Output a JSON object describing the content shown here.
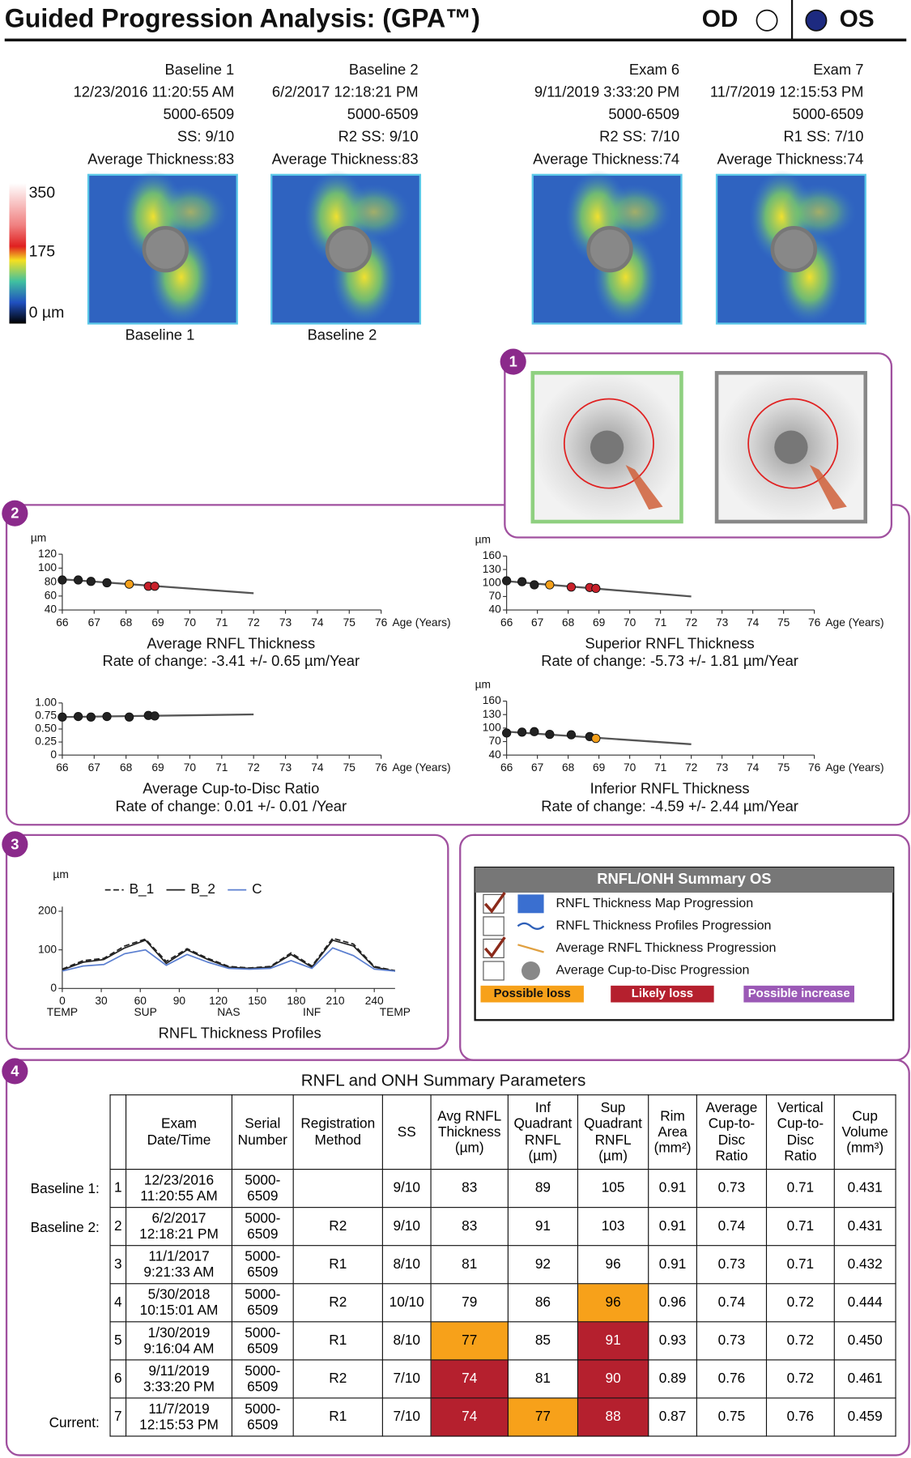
{
  "header": {
    "title": "Guided Progression Analysis: (GPA™)",
    "od": "OD",
    "os": "OS"
  },
  "exams": [
    {
      "lines": [
        "Baseline 1",
        "12/23/2016 11:20:55 AM",
        "5000-6509",
        "SS: 9/10",
        "Average Thickness:83"
      ]
    },
    {
      "lines": [
        "Baseline 2",
        "6/2/2017 12:18:21 PM",
        "5000-6509",
        "R2   SS: 9/10",
        "Average Thickness:83"
      ]
    },
    {
      "lines": [
        "Exam 6",
        "9/11/2019 3:33:20 PM",
        "5000-6509",
        "R2   SS: 7/10",
        "Average Thickness:74"
      ]
    },
    {
      "lines": [
        "Exam 7",
        "11/7/2019 12:15:53 PM",
        "5000-6509",
        "R1   SS: 7/10",
        "Average Thickness:74"
      ]
    }
  ],
  "captions": [
    "Baseline 1",
    "Baseline 2"
  ],
  "colorbar": {
    "labels": [
      "350",
      "175",
      "0 µm"
    ]
  },
  "badges": [
    "1",
    "2",
    "3",
    "4"
  ],
  "chart_data": [
    {
      "type": "scatter",
      "title": "Average RNFL Thickness",
      "subtitle": "Rate of change: -3.41 +/- 0.65 µm/Year",
      "y_label": "µm",
      "x_label": "Age (Years)",
      "xlim": [
        66,
        76
      ],
      "xticks": [
        66,
        67,
        68,
        69,
        70,
        71,
        72,
        73,
        74,
        75,
        76
      ],
      "ylim": [
        40,
        120
      ],
      "yticks": [
        40,
        60,
        80,
        100,
        120
      ],
      "x": [
        66.0,
        66.5,
        66.9,
        67.4,
        68.1,
        68.7,
        68.9
      ],
      "values": [
        83,
        83,
        81,
        79,
        77,
        74,
        74
      ],
      "colors": [
        "#222222",
        "#222222",
        "#222222",
        "#222222",
        "#f5a01a",
        "#c8202a",
        "#c8202a"
      ],
      "trend": {
        "x": [
          66,
          72
        ],
        "y": [
          84,
          64
        ]
      }
    },
    {
      "type": "scatter",
      "title": "Superior RNFL Thickness",
      "subtitle": "Rate of change: -5.73 +/- 1.81 µm/Year",
      "y_label": "µm",
      "x_label": "Age (Years)",
      "xlim": [
        66,
        76
      ],
      "xticks": [
        66,
        67,
        68,
        69,
        70,
        71,
        72,
        73,
        74,
        75,
        76
      ],
      "ylim": [
        40,
        160
      ],
      "yticks": [
        40,
        70,
        100,
        130,
        160
      ],
      "x": [
        66.0,
        66.5,
        66.9,
        67.4,
        68.1,
        68.7,
        68.9
      ],
      "values": [
        105,
        103,
        96,
        96,
        91,
        90,
        88
      ],
      "colors": [
        "#222222",
        "#222222",
        "#222222",
        "#f5a01a",
        "#c8202a",
        "#c8202a",
        "#c8202a"
      ],
      "trend": {
        "x": [
          66,
          72
        ],
        "y": [
          104,
          70
        ]
      }
    },
    {
      "type": "scatter",
      "title": "Average Cup-to-Disc Ratio",
      "subtitle": "Rate of change: 0.01 +/- 0.01  /Year",
      "x_label": "Age (Years)",
      "xlim": [
        66,
        76
      ],
      "xticks": [
        66,
        67,
        68,
        69,
        70,
        71,
        72,
        73,
        74,
        75,
        76
      ],
      "ylim": [
        0,
        1
      ],
      "yticks": [
        0,
        0.25,
        {
          "value": 0.5,
          "label": "0.50"
        },
        0.75,
        {
          "value": 1,
          "label": "1.00"
        }
      ],
      "x": [
        66.0,
        66.5,
        66.9,
        67.4,
        68.1,
        68.7,
        68.9
      ],
      "values": [
        0.73,
        0.74,
        0.73,
        0.74,
        0.73,
        0.76,
        0.75
      ],
      "colors": [
        "#222222",
        "#222222",
        "#222222",
        "#222222",
        "#222222",
        "#222222",
        "#222222"
      ],
      "trend": {
        "x": [
          66,
          72
        ],
        "y": [
          0.73,
          0.78
        ]
      }
    },
    {
      "type": "scatter",
      "title": "Inferior RNFL Thickness",
      "subtitle": "Rate of change: -4.59 +/- 2.44 µm/Year",
      "y_label": "µm",
      "x_label": "Age (Years)",
      "xlim": [
        66,
        76
      ],
      "xticks": [
        66,
        67,
        68,
        69,
        70,
        71,
        72,
        73,
        74,
        75,
        76
      ],
      "ylim": [
        40,
        160
      ],
      "yticks": [
        40,
        70,
        100,
        130,
        160
      ],
      "x": [
        66.0,
        66.5,
        66.9,
        67.4,
        68.1,
        68.7,
        68.9
      ],
      "values": [
        89,
        91,
        92,
        86,
        85,
        81,
        77
      ],
      "colors": [
        "#222222",
        "#222222",
        "#222222",
        "#222222",
        "#222222",
        "#222222",
        "#f5a01a"
      ],
      "trend": {
        "x": [
          66,
          72
        ],
        "y": [
          92,
          64
        ]
      }
    },
    {
      "type": "line",
      "title": "RNFL Thickness Profiles",
      "y_label": "µm",
      "xlim": [
        0,
        256
      ],
      "xticks": [
        0,
        30,
        60,
        90,
        120,
        150,
        180,
        210,
        240
      ],
      "ylim": [
        0,
        200
      ],
      "yticks": [
        0,
        100,
        200
      ],
      "x_regions": [
        {
          "value": 0,
          "label": "TEMP"
        },
        {
          "value": 64,
          "label": "SUP"
        },
        {
          "value": 128,
          "label": "NAS"
        },
        {
          "value": 192,
          "label": "INF"
        },
        {
          "value": 256,
          "label": "TEMP"
        }
      ],
      "x": [
        0,
        16,
        32,
        48,
        64,
        80,
        96,
        112,
        128,
        144,
        160,
        176,
        192,
        208,
        224,
        240,
        256
      ],
      "series": [
        {
          "name": "B_1",
          "color": "#222222",
          "dash": true,
          "values": [
            50,
            72,
            78,
            110,
            128,
            70,
            103,
            78,
            57,
            53,
            57,
            92,
            58,
            130,
            115,
            57,
            46
          ]
        },
        {
          "name": "B_2",
          "color": "#222222",
          "dash": false,
          "values": [
            48,
            68,
            75,
            105,
            125,
            65,
            100,
            75,
            55,
            52,
            55,
            88,
            55,
            125,
            110,
            55,
            45
          ]
        },
        {
          "name": "C",
          "color": "#5b7fd0",
          "dash": false,
          "values": [
            45,
            58,
            62,
            90,
            100,
            60,
            88,
            68,
            52,
            50,
            52,
            72,
            52,
            105,
            85,
            50,
            45
          ]
        }
      ]
    }
  ],
  "summary_legend": {
    "title": "RNFL/ONH Summary OS",
    "items": [
      {
        "label": "RNFL Thickness Map Progression",
        "checked": true
      },
      {
        "label": "RNFL Thickness Profiles Progression",
        "checked": false
      },
      {
        "label": "Average RNFL  Thickness  Progression",
        "checked": true
      },
      {
        "label": "Average Cup-to-Disc Progression",
        "checked": false
      }
    ],
    "keys": [
      {
        "label": "Possible loss",
        "color": "#f7a11a"
      },
      {
        "label": "Likely loss",
        "color": "#b5202e"
      },
      {
        "label": "Possible increase",
        "color": "#9b59b6"
      }
    ]
  },
  "table": {
    "title": "RNFL and ONH Summary Parameters",
    "headers": [
      null,
      "Exam\nDate/Time",
      "Serial\nNumber",
      "Registration\nMethod",
      "SS",
      "Avg RNFL\nThickness\n(µm)",
      "Inf\nQuadrant\nRNFL\n(µm)",
      "Sup\nQuadrant\nRNFL\n(µm)",
      "Rim\nArea\n(mm²)",
      "Average\nCup-to-\nDisc\nRatio",
      "Vertical\nCup-to-\nDisc\nRatio",
      "Cup\nVolume\n(mm³)"
    ],
    "row_labels": [
      "Baseline 1:",
      "Baseline 2:",
      null,
      null,
      null,
      null,
      "Current:"
    ],
    "rows": [
      [
        "1",
        "12/23/2016\n11:20:55 AM",
        "5000-\n6509",
        null,
        "9/10",
        "83",
        "89",
        "105",
        "0.91",
        "0.73",
        "0.71",
        "0.431"
      ],
      [
        "2",
        "6/2/2017\n12:18:21 PM",
        "5000-\n6509",
        "R2",
        "9/10",
        "83",
        "91",
        "103",
        "0.91",
        "0.74",
        "0.71",
        "0.431"
      ],
      [
        "3",
        "11/1/2017\n9:21:33 AM",
        "5000-\n6509",
        "R1",
        "8/10",
        "81",
        "92",
        "96",
        "0.91",
        "0.73",
        "0.71",
        "0.432"
      ],
      [
        "4",
        "5/30/2018\n10:15:01 AM",
        "5000-\n6509",
        "R2",
        "10/10",
        "79",
        "86",
        "96",
        "0.96",
        "0.74",
        "0.72",
        "0.444"
      ],
      [
        "5",
        "1/30/2019\n9:16:04 AM",
        "5000-\n6509",
        "R1",
        "8/10",
        "77",
        "85",
        "91",
        "0.93",
        "0.73",
        "0.72",
        "0.450"
      ],
      [
        "6",
        "9/11/2019\n3:33:20 PM",
        "5000-\n6509",
        "R2",
        "7/10",
        "74",
        "81",
        "90",
        "0.89",
        "0.76",
        "0.72",
        "0.461"
      ],
      [
        "7",
        "11/7/2019\n12:15:53 PM",
        "5000-\n6509",
        "R1",
        "7/10",
        "74",
        "77",
        "88",
        "0.87",
        "0.75",
        "0.76",
        "0.459"
      ]
    ],
    "highlights": [
      {
        "row": 3,
        "col": 7,
        "color": "#f7a11a"
      },
      {
        "row": 4,
        "col": 5,
        "color": "#f7a11a"
      },
      {
        "row": 4,
        "col": 7,
        "color": "#b5202e"
      },
      {
        "row": 5,
        "col": 5,
        "color": "#b5202e"
      },
      {
        "row": 5,
        "col": 7,
        "color": "#b5202e"
      },
      {
        "row": 6,
        "col": 5,
        "color": "#b5202e"
      },
      {
        "row": 6,
        "col": 6,
        "color": "#f7a11a"
      },
      {
        "row": 6,
        "col": 7,
        "color": "#b5202e"
      }
    ]
  }
}
